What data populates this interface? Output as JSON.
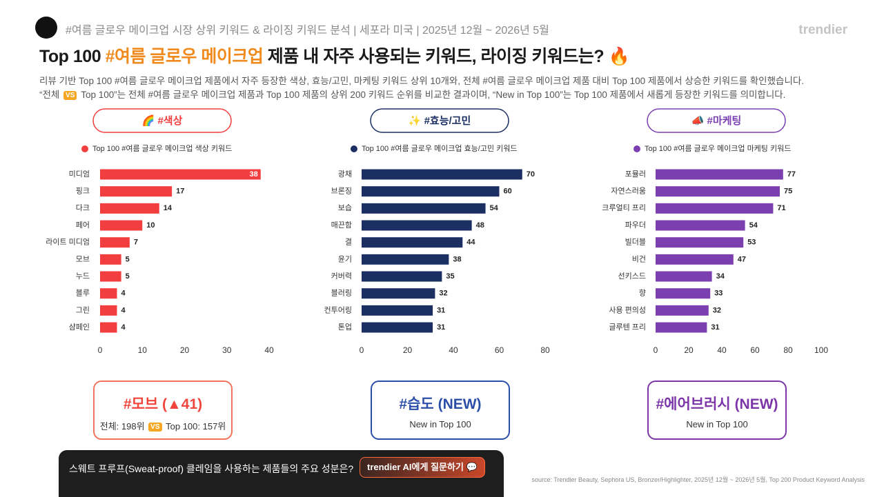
{
  "header": {
    "subtitle": "#여름 글로우 메이크업 시장 상위 키워드 & 라이징 키워드 분석 | 세포라 미국 | 2025년 12월 ~ 2026년 5월",
    "brand": "trendier",
    "title_parts": [
      "Top 100 ",
      "#여름 글로우 메이크업",
      " 제품 내 자주 사용되는 키워드, 라이징 키워드는? 🔥"
    ]
  },
  "description": {
    "line1": "리뷰 기반 Top 100 #여름 글로우 메이크업 제품에서 자주 등장한 색상, 효능/고민, 마케팅 키워드 상위 10개와, 전체 #여름 글로우 메이크업 제품 대비 Top 100 제품에서 상승한 키워드를 확인했습니다.",
    "line2_parts": [
      "“전체 ",
      "VS",
      " Top 100”는 전체 #여름 글로우 메이크업 제품과 Top 100 제품의 상위 200 키워드 순위를 비교한 결과이며, “New in Top 100”는 Top 100 제품에서 새롭게 등장한 키워드를 의미합니다."
    ]
  },
  "chart_data": [
    {
      "type": "bar",
      "orientation": "horizontal",
      "title": "🌈 #색상",
      "categories": [
        "미디엄",
        "핑크",
        "다크",
        "페어",
        "라이트 미디엄",
        "모브",
        "누드",
        "블루",
        "그린",
        "샴페인"
      ],
      "series": [
        {
          "name": "Top 100 #여름 글로우 메이크업 색상 키워드",
          "color": "#f23e3e",
          "values": [
            38,
            17,
            14,
            10,
            7,
            5,
            5,
            4,
            4,
            4
          ]
        }
      ],
      "xlim": [
        0,
        40
      ],
      "xticks": [
        0,
        10,
        20,
        30,
        40
      ]
    },
    {
      "type": "bar",
      "orientation": "horizontal",
      "title": "✨ #효능/고민",
      "categories": [
        "광채",
        "브론징",
        "보습",
        "매끈함",
        "결",
        "윤기",
        "커버력",
        "블러링",
        "컨투어링",
        "톤업"
      ],
      "series": [
        {
          "name": "Top 100 #여름 글로우 메이크업 효능/고민 키워드",
          "color": "#1b2f63",
          "values": [
            70,
            60,
            54,
            48,
            44,
            38,
            35,
            32,
            31,
            31
          ]
        }
      ],
      "xlim": [
        0,
        80
      ],
      "xticks": [
        0,
        20,
        40,
        60,
        80
      ]
    },
    {
      "type": "bar",
      "orientation": "horizontal",
      "title": "📣 #마케팅",
      "categories": [
        "포뮬러",
        "자연스러움",
        "크루얼티 프리",
        "파우더",
        "빌더블",
        "비건",
        "선키스드",
        "향",
        "사용 편의성",
        "글루텐 프리"
      ],
      "series": [
        {
          "name": "Top 100 #여름 글로우 메이크업 마케팅 키워드",
          "color": "#7b3fb0",
          "values": [
            77,
            75,
            71,
            54,
            53,
            47,
            34,
            33,
            32,
            31
          ]
        }
      ],
      "xlim": [
        0,
        100
      ],
      "xticks": [
        0,
        20,
        40,
        60,
        80,
        100
      ]
    }
  ],
  "cards": [
    {
      "title": "#모브 (▲41)",
      "parts": [
        "전체: 198위",
        "VS",
        "Top 100: 157위"
      ]
    },
    {
      "title": "#습도 (NEW)",
      "subtitle": "New in Top 100"
    },
    {
      "title": "#에어브러시 (NEW)",
      "subtitle": "New in Top 100"
    }
  ],
  "chat": {
    "question": "스웨트 프루프(Sweat-proof) 클레임을 사용하는 제품들의 주요 성분은?",
    "button": "trendier AI에게 질문하기 💬"
  },
  "source": "source: Trendier Beauty, Sephora US, Bronzer/Highlighter, 2025년 12월 ~ 2026년 5월, Top 200 Product Keyword Analysis"
}
